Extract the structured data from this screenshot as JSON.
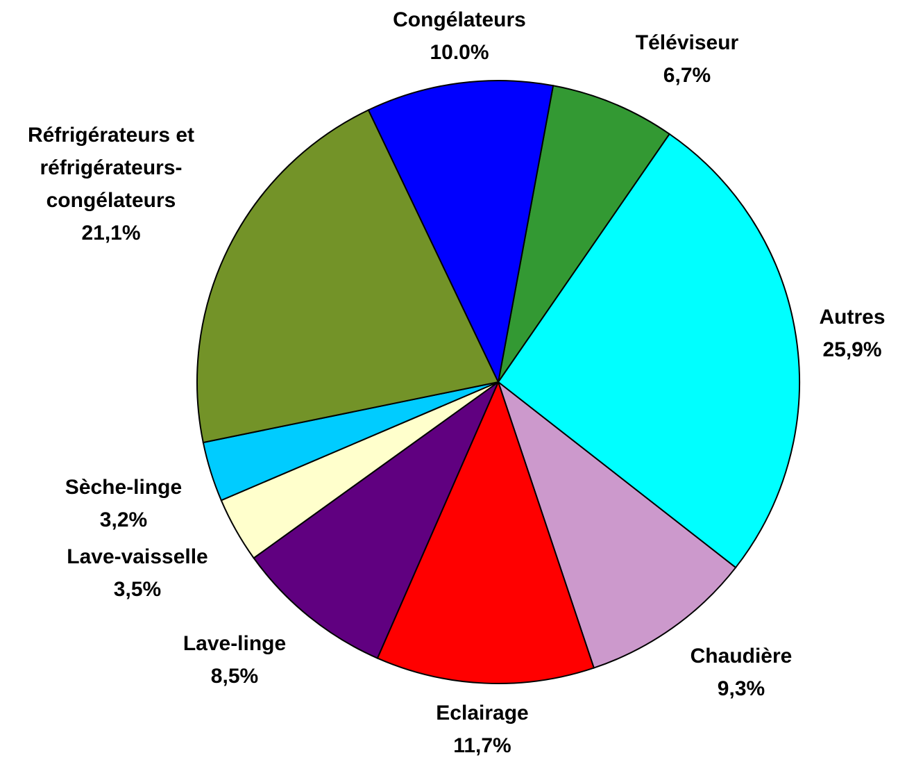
{
  "chart_data": {
    "type": "pie",
    "categories": [
      "Téléviseur",
      "Autres",
      "Chaudière",
      "Eclairage",
      "Lave-linge",
      "Lave-vaisselle",
      "Sèche-linge",
      "Réfrigérateurs et réfrigérateurs-congélateurs",
      "Congélateurs"
    ],
    "values": [
      6.7,
      25.9,
      9.3,
      11.7,
      8.5,
      3.5,
      3.2,
      21.1,
      10.0
    ],
    "value_labels": [
      "6,7%",
      "25,9%",
      "9,3%",
      "11,7%",
      "8,5%",
      "3,5%",
      "3,2%",
      "21,1%",
      "10.0%"
    ],
    "colors": [
      "#339933",
      "#00ffff",
      "#cc99cc",
      "#ff0000",
      "#600080",
      "#ffffcc",
      "#00ccff",
      "#739328",
      "#0000ff"
    ]
  }
}
